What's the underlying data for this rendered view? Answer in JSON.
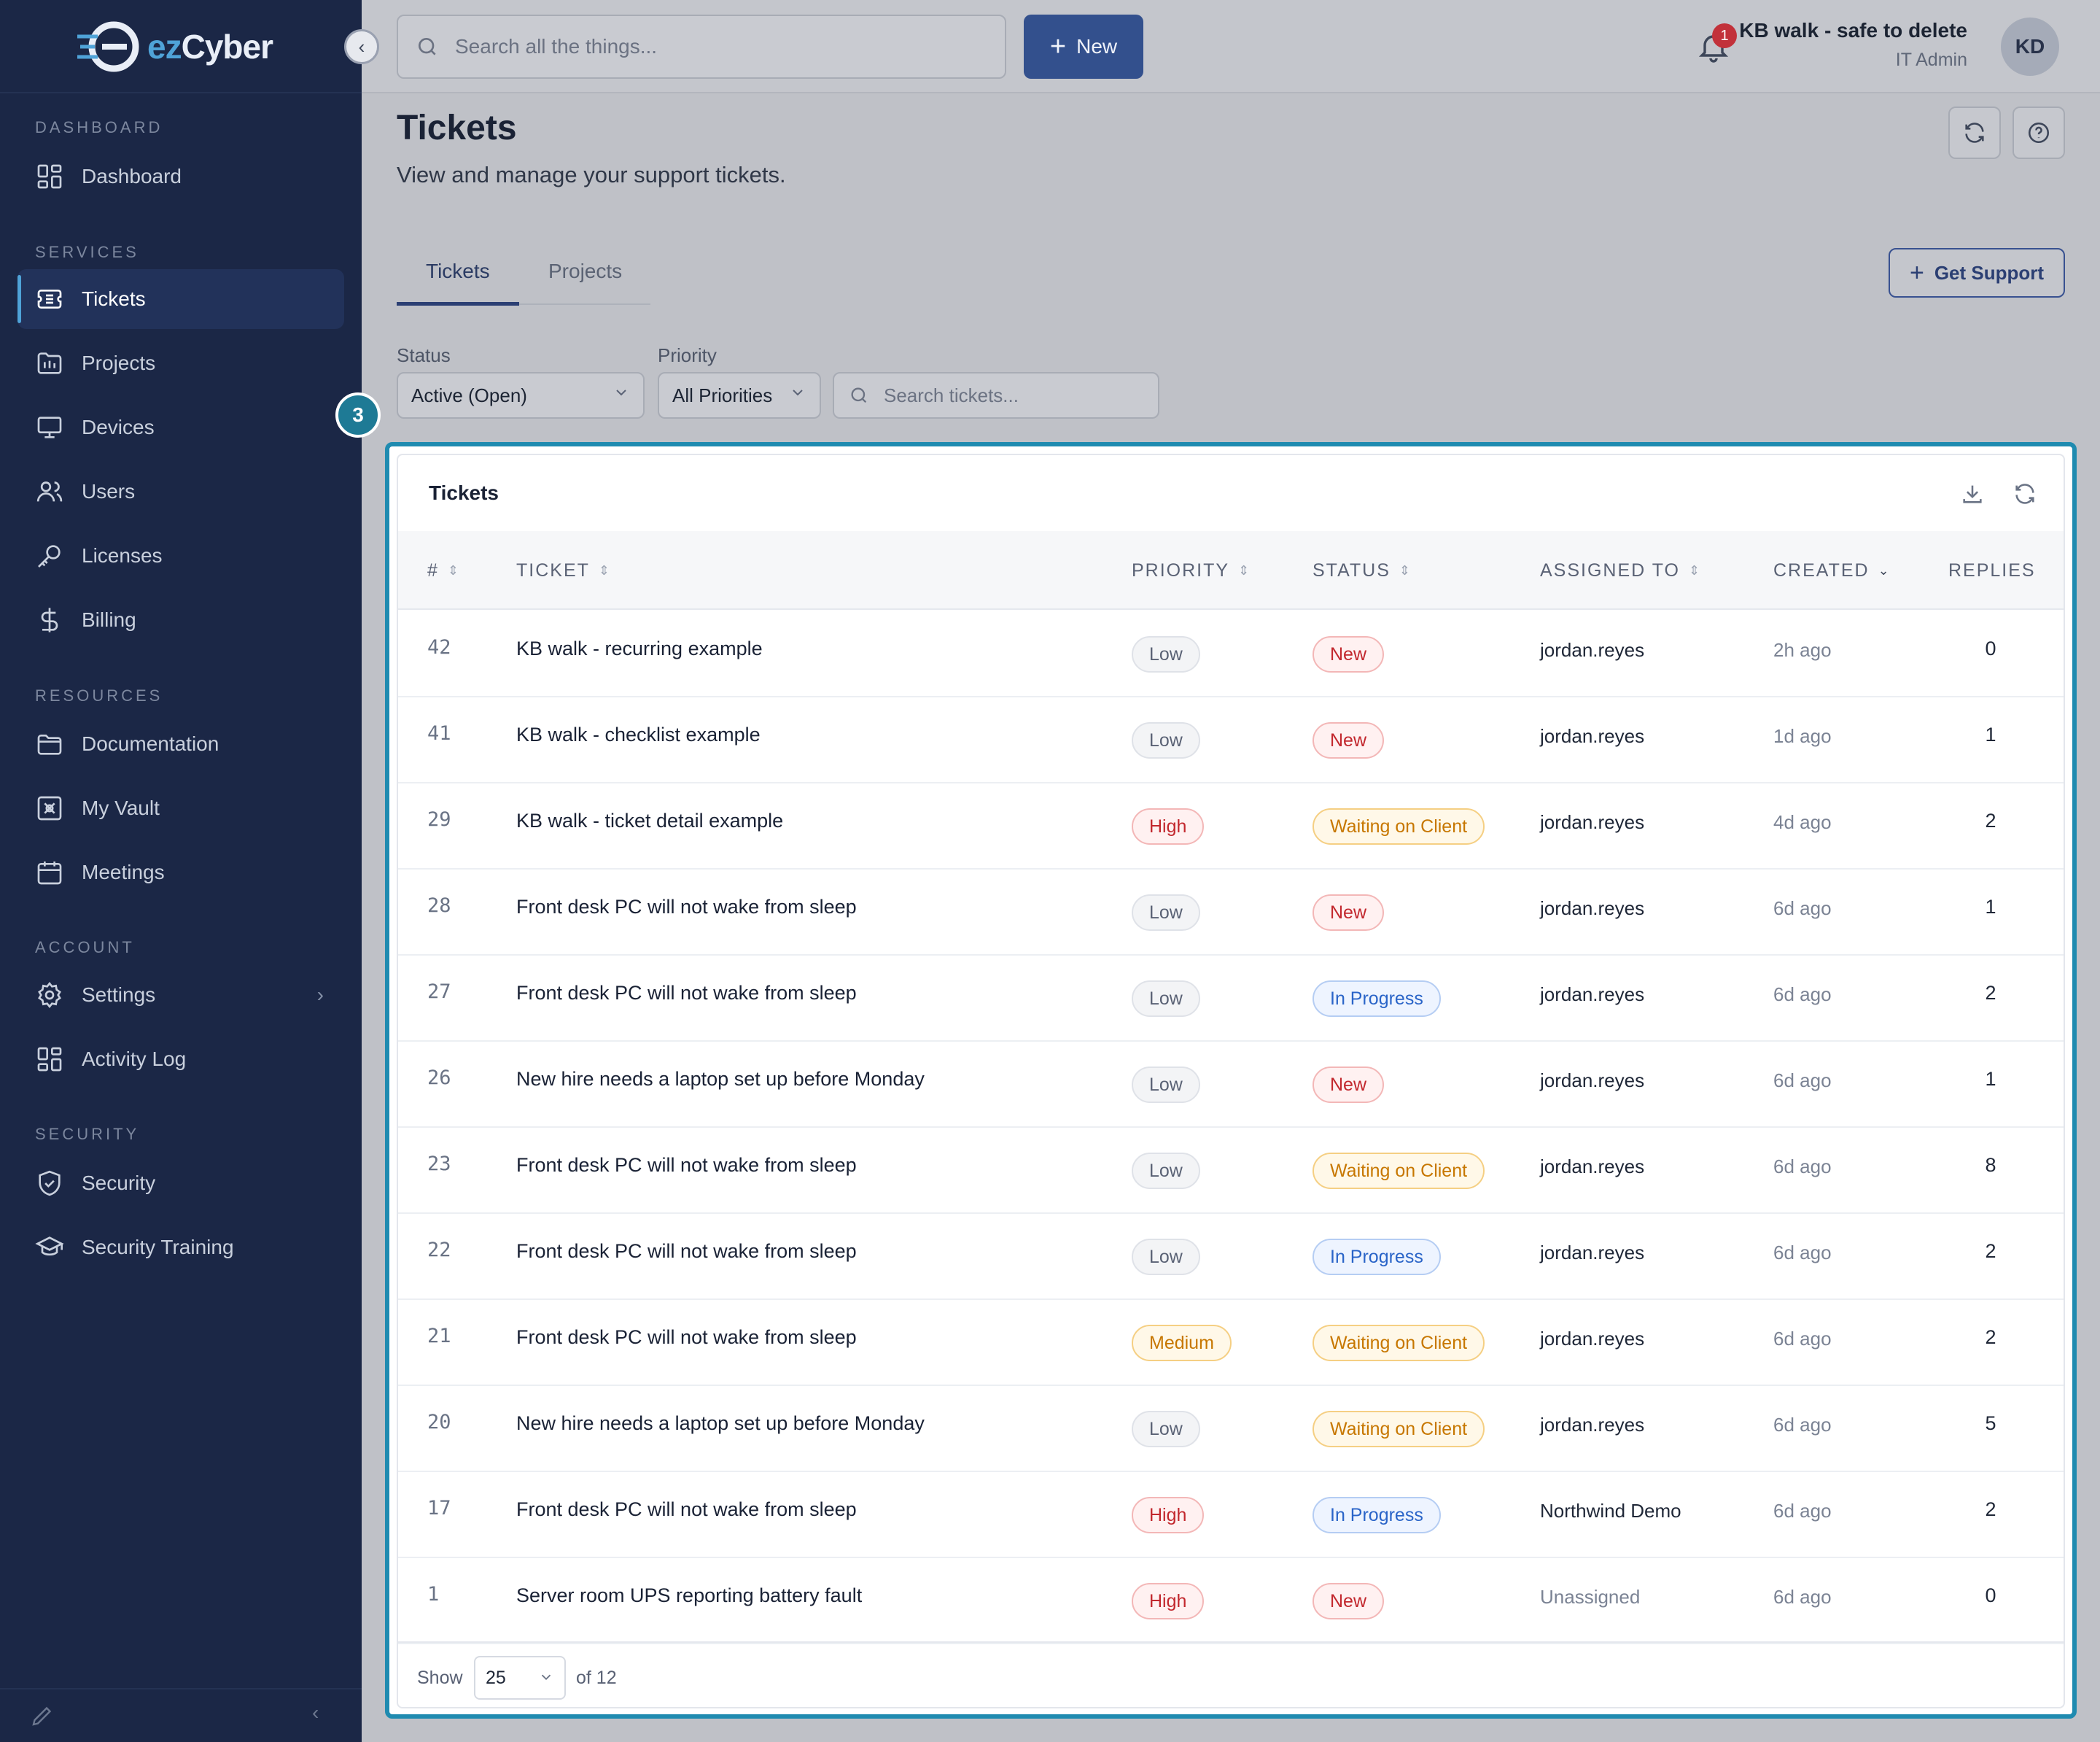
{
  "brand": {
    "prefix": "ez",
    "suffix": "Cyber"
  },
  "sidebar": {
    "sections": [
      {
        "label": "DASHBOARD"
      },
      {
        "label": "SERVICES"
      },
      {
        "label": "RESOURCES"
      },
      {
        "label": "ACCOUNT"
      },
      {
        "label": "SECURITY"
      }
    ],
    "items": [
      {
        "label": "Dashboard",
        "icon": "dashboard-icon"
      },
      {
        "label": "Tickets",
        "icon": "ticket-icon",
        "active": true
      },
      {
        "label": "Projects",
        "icon": "projects-icon"
      },
      {
        "label": "Devices",
        "icon": "monitor-icon"
      },
      {
        "label": "Users",
        "icon": "users-icon"
      },
      {
        "label": "Licenses",
        "icon": "key-icon"
      },
      {
        "label": "Billing",
        "icon": "dollar-icon"
      },
      {
        "label": "Documentation",
        "icon": "folder-icon"
      },
      {
        "label": "My Vault",
        "icon": "vault-icon"
      },
      {
        "label": "Meetings",
        "icon": "calendar-icon"
      },
      {
        "label": "Settings",
        "icon": "gear-icon"
      },
      {
        "label": "Activity Log",
        "icon": "activity-log-icon"
      },
      {
        "label": "Security",
        "icon": "shield-icon"
      },
      {
        "label": "Security Training",
        "icon": "graduation-cap-icon"
      }
    ]
  },
  "topbar": {
    "search_placeholder": "Search all the things...",
    "new_label": "New",
    "notification_count": "1",
    "user_name": "KB walk - safe to delete",
    "user_role": "IT Admin",
    "avatar_initials": "KD"
  },
  "page": {
    "title": "Tickets",
    "subtitle": "View and manage your support tickets."
  },
  "tabs": [
    {
      "label": "Tickets",
      "active": true
    },
    {
      "label": "Projects",
      "active": false
    }
  ],
  "get_support_label": "Get Support",
  "filters": {
    "status_label": "Status",
    "status_value": "Active (Open)",
    "priority_label": "Priority",
    "priority_value": "All Priorities",
    "search_placeholder": "Search tickets..."
  },
  "step_marker": "3",
  "table": {
    "title": "Tickets",
    "columns": [
      "#",
      "TICKET",
      "PRIORITY",
      "STATUS",
      "ASSIGNED TO",
      "CREATED",
      "REPLIES"
    ],
    "rows": [
      {
        "num": "42",
        "title": "KB walk - recurring example",
        "priority": "Low",
        "status": "New",
        "assigned": "jordan.reyes",
        "created": "2h ago",
        "replies": "0"
      },
      {
        "num": "41",
        "title": "KB walk - checklist example",
        "priority": "Low",
        "status": "New",
        "assigned": "jordan.reyes",
        "created": "1d ago",
        "replies": "1"
      },
      {
        "num": "29",
        "title": "KB walk - ticket detail example",
        "priority": "High",
        "status": "Waiting on Client",
        "assigned": "jordan.reyes",
        "created": "4d ago",
        "replies": "2"
      },
      {
        "num": "28",
        "title": "Front desk PC will not wake from sleep",
        "priority": "Low",
        "status": "New",
        "assigned": "jordan.reyes",
        "created": "6d ago",
        "replies": "1"
      },
      {
        "num": "27",
        "title": "Front desk PC will not wake from sleep",
        "priority": "Low",
        "status": "In Progress",
        "assigned": "jordan.reyes",
        "created": "6d ago",
        "replies": "2"
      },
      {
        "num": "26",
        "title": "New hire needs a laptop set up before Monday",
        "priority": "Low",
        "status": "New",
        "assigned": "jordan.reyes",
        "created": "6d ago",
        "replies": "1"
      },
      {
        "num": "23",
        "title": "Front desk PC will not wake from sleep",
        "priority": "Low",
        "status": "Waiting on Client",
        "assigned": "jordan.reyes",
        "created": "6d ago",
        "replies": "8"
      },
      {
        "num": "22",
        "title": "Front desk PC will not wake from sleep",
        "priority": "Low",
        "status": "In Progress",
        "assigned": "jordan.reyes",
        "created": "6d ago",
        "replies": "2"
      },
      {
        "num": "21",
        "title": "Front desk PC will not wake from sleep",
        "priority": "Medium",
        "status": "Waiting on Client",
        "assigned": "jordan.reyes",
        "created": "6d ago",
        "replies": "2"
      },
      {
        "num": "20",
        "title": "New hire needs a laptop set up before Monday",
        "priority": "Low",
        "status": "Waiting on Client",
        "assigned": "jordan.reyes",
        "created": "6d ago",
        "replies": "5"
      },
      {
        "num": "17",
        "title": "Front desk PC will not wake from sleep",
        "priority": "High",
        "status": "In Progress",
        "assigned": "Northwind Demo",
        "created": "6d ago",
        "replies": "2"
      },
      {
        "num": "1",
        "title": "Server room UPS reporting battery fault",
        "priority": "High",
        "status": "New",
        "assigned": "Unassigned",
        "created": "6d ago",
        "replies": "0"
      }
    ],
    "footer": {
      "show_label": "Show",
      "page_size": "25",
      "of_label": "of 12"
    }
  },
  "colors": {
    "sidebar_bg": "#1b2746",
    "accent": "#33508d",
    "highlight": "#1f8bb0",
    "priority": {
      "Low": {
        "fg": "#5a6275",
        "bg": "#f3f4f6",
        "border": "#dfe2e8"
      },
      "Medium": {
        "fg": "#c77700",
        "bg": "#fff8e8",
        "border": "#f5cf83"
      },
      "High": {
        "fg": "#c2272d",
        "bg": "#fff1f1",
        "border": "#f3b7b7"
      }
    },
    "status": {
      "New": {
        "fg": "#c2272d",
        "bg": "#fff1f1",
        "border": "#f3b7b7"
      },
      "Waiting on Client": {
        "fg": "#c77700",
        "bg": "#fff8e8",
        "border": "#f5cf83"
      },
      "In Progress": {
        "fg": "#2a64c8",
        "bg": "#eef4ff",
        "border": "#b5cdf3"
      }
    }
  }
}
